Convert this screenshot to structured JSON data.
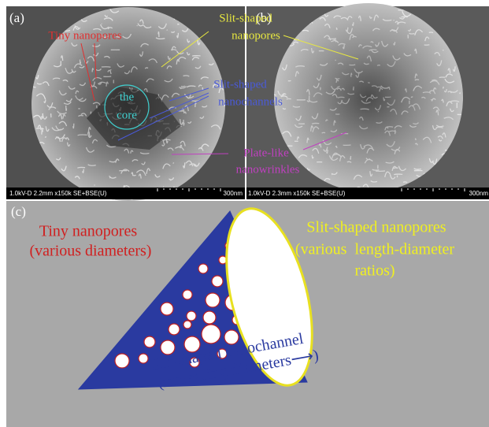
{
  "panel_a": {
    "label": "(a)",
    "tiny_nanopores": "Tiny nanopores",
    "core": [
      "the",
      "core"
    ],
    "info_bar": "1.0kV-D 2.2mm x150k SE+BSE(U)",
    "scale": "300nm"
  },
  "panel_b": {
    "label": "(b)",
    "info_bar": "1.0kV-D 2.3mm x150k SE+BSE(U)",
    "scale": "300nm"
  },
  "annotations": {
    "slit_nanopores": [
      "Slit-shaped",
      "nanopores"
    ],
    "slit_nanochannels": [
      "Slit-shaped",
      "nanochannels"
    ],
    "plate_like": [
      "Plate-like",
      "nanowrinkles"
    ]
  },
  "panel_c": {
    "label": "(c)",
    "tiny_nanopores": [
      "Tiny nanopores",
      "(various diameters)"
    ],
    "slit_nanopores": [
      "Slit-shaped nanopores",
      "(various  length-diameter",
      "ratios)"
    ],
    "nanochannel": [
      "Slit-shaped nanochannel",
      "(increasing diameters⟶)"
    ]
  }
}
